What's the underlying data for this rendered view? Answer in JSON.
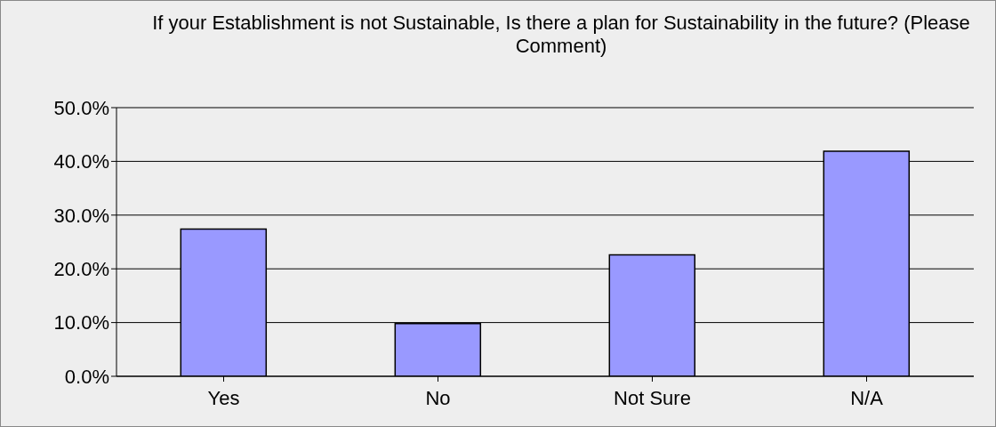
{
  "chart_data": {
    "type": "bar",
    "title": "If your Establishment is not Sustainable, Is there a plan for Sustainability in the future? (Please Comment)",
    "categories": [
      "Yes",
      "No",
      "Not Sure",
      "N/A"
    ],
    "values": [
      27.4,
      9.8,
      22.6,
      41.9
    ],
    "color": "#9999ff",
    "ylim": [
      0,
      50
    ],
    "yticks": [
      {
        "value": 0,
        "label": "0.0%"
      },
      {
        "value": 10,
        "label": "10.0%"
      },
      {
        "value": 20,
        "label": "20.0%"
      },
      {
        "value": 30,
        "label": "30.0%"
      },
      {
        "value": 40,
        "label": "40.0%"
      },
      {
        "value": 50,
        "label": "50.0%"
      }
    ],
    "grid": "y",
    "legend": false
  }
}
